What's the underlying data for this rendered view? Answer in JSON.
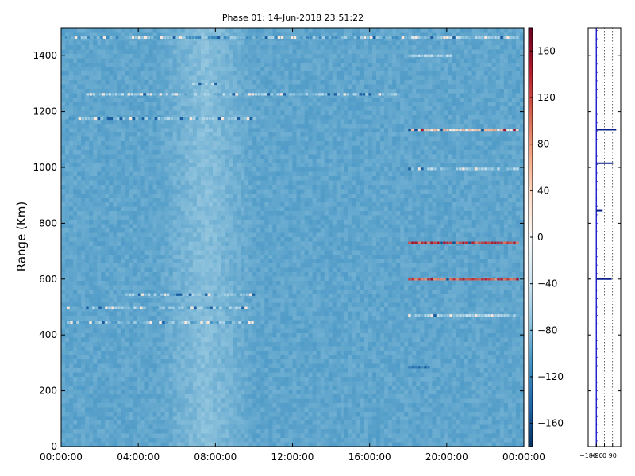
{
  "chart_data": [
    {
      "type": "heatmap",
      "title": "Phase 01: 14-Jun-2018 23:51:22",
      "ylabel": "Range (Km)",
      "xlabel": "",
      "x_ticks": [
        "00:00:00",
        "04:00:00",
        "08:00:00",
        "12:00:00",
        "16:00:00",
        "20:00:00",
        "00:00:00"
      ],
      "x_tick_hours": [
        0,
        4,
        8,
        12,
        16,
        20,
        24
      ],
      "xlim_hours": [
        0,
        24
      ],
      "y_ticks": [
        0,
        200,
        400,
        600,
        800,
        1000,
        1200,
        1400
      ],
      "ylim": [
        0,
        1500
      ],
      "colorbar": {
        "colormap": "RdBu_r",
        "vmin": -180,
        "vmax": 180,
        "ticks": [
          -160,
          -120,
          -80,
          -40,
          0,
          40,
          80,
          120,
          160
        ]
      },
      "background_value": -95,
      "bright_band_hours": [
        5,
        10
      ],
      "features": [
        {
          "range_km": 1465,
          "start_hour": 0.2,
          "end_hour": 23.6,
          "level": -90
        },
        {
          "range_km": 1465,
          "start_hour": 18.0,
          "end_hour": 23.6,
          "level": -60
        },
        {
          "range_km": 1400,
          "start_hour": 18.0,
          "end_hour": 20.2,
          "level": -50
        },
        {
          "range_km": 1300,
          "start_hour": 6.8,
          "end_hour": 8.2,
          "level": -60
        },
        {
          "range_km": 1262,
          "start_hour": 1.3,
          "end_hour": 17.6,
          "level": -70
        },
        {
          "range_km": 1175,
          "start_hour": 0.4,
          "end_hour": 10.0,
          "level": -80
        },
        {
          "range_km": 1135,
          "start_hour": 18.0,
          "end_hour": 23.7,
          "level": 40
        },
        {
          "range_km": 995,
          "start_hour": 18.0,
          "end_hour": 23.7,
          "level": -70
        },
        {
          "range_km": 730,
          "start_hour": 18.0,
          "end_hour": 23.7,
          "level": 120
        },
        {
          "range_km": 600,
          "start_hour": 18.0,
          "end_hour": 23.7,
          "level": 110
        },
        {
          "range_km": 545,
          "start_hour": 3.0,
          "end_hour": 10.0,
          "level": -75
        },
        {
          "range_km": 497,
          "start_hour": 0.3,
          "end_hour": 10.0,
          "level": -75
        },
        {
          "range_km": 470,
          "start_hour": 18.0,
          "end_hour": 23.7,
          "level": -70
        },
        {
          "range_km": 445,
          "start_hour": 0.3,
          "end_hour": 10.0,
          "level": -80
        },
        {
          "range_km": 285,
          "start_hour": 18.0,
          "end_hour": 19.1,
          "level": -120
        }
      ]
    },
    {
      "type": "line",
      "title": "",
      "x_ticks": [
        "−180",
        "−90",
        "0",
        "90"
      ],
      "x_tick_values": [
        -180,
        -90,
        0,
        90
      ],
      "xlim": [
        -180,
        180
      ],
      "ylim": [
        0,
        1500
      ],
      "grid": true,
      "baseline_phase": -90,
      "spikes": [
        {
          "range_km": 1135,
          "phase": 130
        },
        {
          "range_km": 1015,
          "phase": 95
        },
        {
          "range_km": 845,
          "phase": -20
        },
        {
          "range_km": 600,
          "phase": 80
        }
      ]
    }
  ]
}
